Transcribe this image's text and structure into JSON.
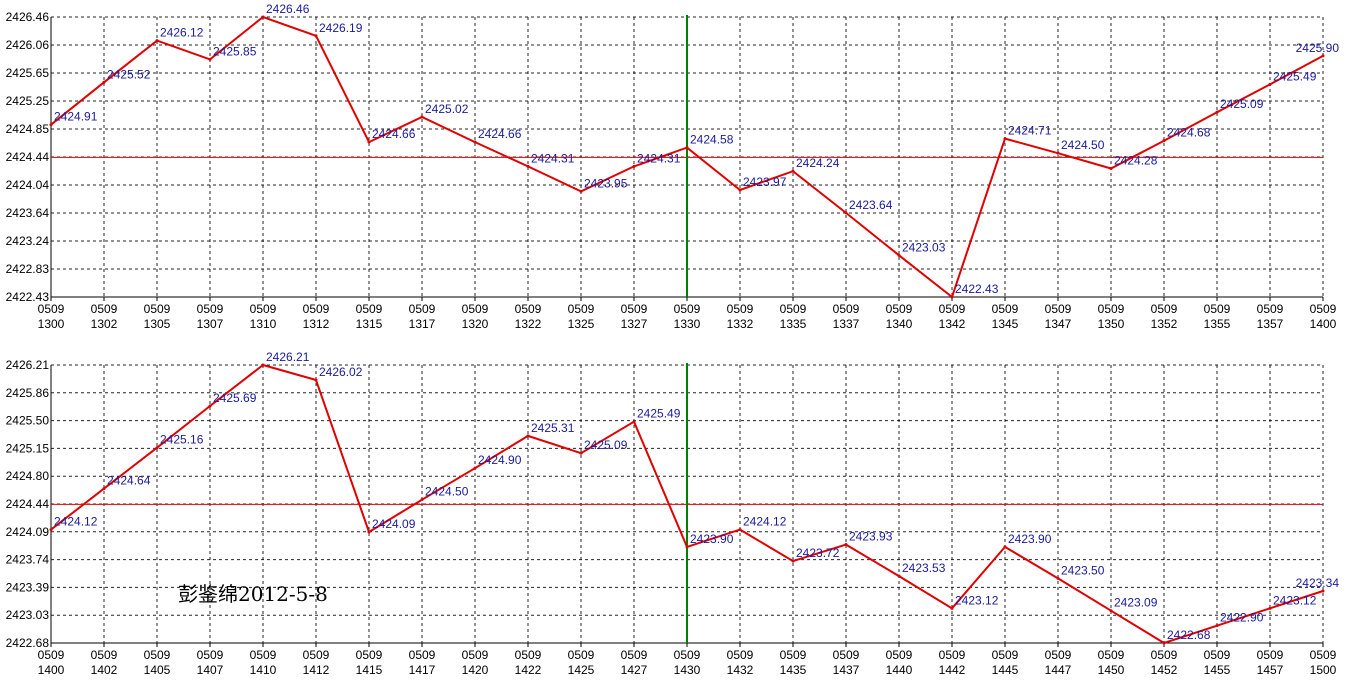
{
  "colors": {
    "line": "#e00000",
    "ref_line": "#e00000",
    "marker_line": "#008000",
    "grid": "#000000",
    "label": "#1a1a9c"
  },
  "watermark": "彭鉴绵2012-5-8",
  "chart_data": [
    {
      "type": "line",
      "x_date": [
        "0509",
        "0509",
        "0509",
        "0509",
        "0509",
        "0509",
        "0509",
        "0509",
        "0509",
        "0509",
        "0509",
        "0509",
        "0509",
        "0509",
        "0509",
        "0509",
        "0509",
        "0509",
        "0509",
        "0509",
        "0509",
        "0509",
        "0509",
        "0509",
        "0509"
      ],
      "x_time": [
        "1300",
        "1302",
        "1305",
        "1307",
        "1310",
        "1312",
        "1315",
        "1317",
        "1320",
        "1322",
        "1325",
        "1327",
        "1330",
        "1332",
        "1335",
        "1337",
        "1340",
        "1342",
        "1345",
        "1347",
        "1350",
        "1352",
        "1355",
        "1357",
        "1400"
      ],
      "y_ticks": [
        "2426.46",
        "2426.06",
        "2425.65",
        "2425.25",
        "2424.85",
        "2424.44",
        "2424.04",
        "2423.64",
        "2423.24",
        "2422.83",
        "2422.43"
      ],
      "ylim": [
        2422.43,
        2426.46
      ],
      "reference_value": 2424.44,
      "marker_index": 12,
      "grid": true,
      "series": [
        {
          "values": [
            2424.91,
            2425.52,
            2426.12,
            2425.85,
            2426.46,
            2426.19,
            2424.66,
            2425.02,
            2424.66,
            2424.31,
            2423.95,
            2424.31,
            2424.58,
            2423.97,
            2424.24,
            2423.64,
            2423.03,
            2422.43,
            2424.71,
            2424.5,
            2424.28,
            2424.68,
            2425.09,
            2425.49,
            2425.9
          ],
          "labels": [
            "2424.91",
            "2425.52",
            "2426.12",
            "2425.85",
            "2426.46",
            "2426.19",
            "2424.66",
            "2425.02",
            "2424.66",
            "2424.31",
            "2423.95",
            "2424.31",
            "2424.58",
            "2423.97",
            "2424.24",
            "2423.64",
            "2423.03",
            "2422.43",
            "2424.71",
            "2424.50",
            "2424.28",
            "2424.68",
            "2425.09",
            "2425.49",
            "2425.90"
          ]
        }
      ]
    },
    {
      "type": "line",
      "x_date": [
        "0509",
        "0509",
        "0509",
        "0509",
        "0509",
        "0509",
        "0509",
        "0509",
        "0509",
        "0509",
        "0509",
        "0509",
        "0509",
        "0509",
        "0509",
        "0509",
        "0509",
        "0509",
        "0509",
        "0509",
        "0509",
        "0509",
        "0509",
        "0509",
        "0509"
      ],
      "x_time": [
        "1400",
        "1402",
        "1405",
        "1407",
        "1410",
        "1412",
        "1415",
        "1417",
        "1420",
        "1422",
        "1425",
        "1427",
        "1430",
        "1432",
        "1435",
        "1437",
        "1440",
        "1442",
        "1445",
        "1447",
        "1450",
        "1452",
        "1455",
        "1457",
        "1500"
      ],
      "y_ticks": [
        "2426.21",
        "2425.86",
        "2425.50",
        "2425.15",
        "2424.80",
        "2424.44",
        "2424.09",
        "2423.74",
        "2423.39",
        "2423.03",
        "2422.68"
      ],
      "ylim": [
        2422.68,
        2426.21
      ],
      "reference_value": 2424.44,
      "marker_index": 12,
      "grid": true,
      "series": [
        {
          "values": [
            2424.12,
            2424.64,
            2425.16,
            2425.69,
            2426.21,
            2426.02,
            2424.09,
            2424.5,
            2424.9,
            2425.31,
            2425.09,
            2425.49,
            2423.9,
            2424.12,
            2423.72,
            2423.93,
            2423.53,
            2423.12,
            2423.9,
            2423.5,
            2423.09,
            2422.68,
            2422.9,
            2423.12,
            2423.34
          ],
          "labels": [
            "2424.12",
            "2424.64",
            "2425.16",
            "2425.69",
            "2426.21",
            "2426.02",
            "2424.09",
            "2424.50",
            "2424.90",
            "2425.31",
            "2425.09",
            "2425.49",
            "2423.90",
            "2424.12",
            "2423.72",
            "2423.93",
            "2423.53",
            "2423.12",
            "2423.90",
            "2423.50",
            "2423.09",
            "2422.68",
            "2422.90",
            "2423.12",
            "2423.34"
          ]
        }
      ]
    }
  ]
}
